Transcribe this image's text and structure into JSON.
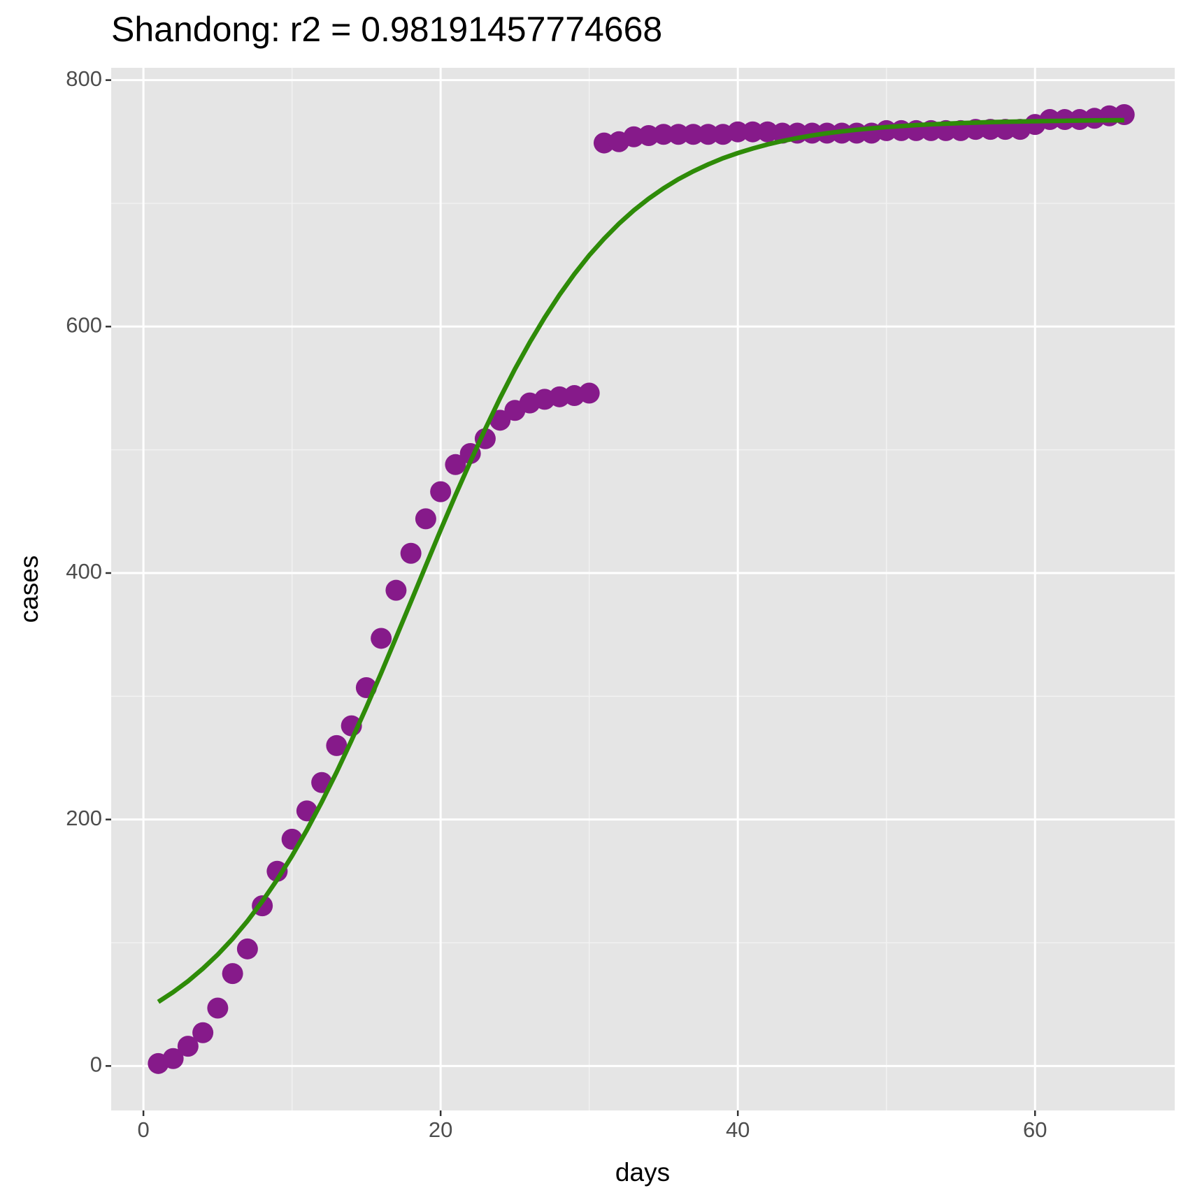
{
  "chart_data": {
    "type": "scatter",
    "title": "Shandong: r2 = 0.98191457774668",
    "x_label": "days",
    "y_label": "cases",
    "x": [
      1,
      2,
      3,
      4,
      5,
      6,
      7,
      8,
      9,
      10,
      11,
      12,
      13,
      14,
      15,
      16,
      17,
      18,
      19,
      20,
      21,
      22,
      23,
      24,
      25,
      26,
      27,
      28,
      29,
      30,
      31,
      32,
      33,
      34,
      35,
      36,
      37,
      38,
      39,
      40,
      41,
      42,
      43,
      44,
      45,
      46,
      47,
      48,
      49,
      50,
      51,
      52,
      53,
      54,
      55,
      56,
      57,
      58,
      59,
      60,
      61,
      62,
      63,
      64,
      65,
      66
    ],
    "series": [
      {
        "style": "points",
        "color": "#861a8a",
        "values": [
          2,
          6,
          16,
          27,
          47,
          75,
          95,
          130,
          158,
          184,
          207,
          230,
          260,
          276,
          307,
          347,
          386,
          416,
          444,
          466,
          488,
          497,
          509,
          524,
          532,
          538,
          541,
          543,
          544,
          546,
          749,
          750,
          754,
          755,
          756,
          756,
          756,
          756,
          756,
          758,
          758,
          758,
          757,
          757,
          757,
          757,
          757,
          757,
          757,
          759,
          759,
          759,
          759,
          759,
          759,
          760,
          760,
          760,
          760,
          764,
          768,
          768,
          768,
          769,
          771,
          772
        ]
      },
      {
        "style": "line",
        "color": "#2e8b08",
        "values": [
          52.0,
          59.9,
          68.8,
          79.0,
          90.4,
          103.2,
          117.6,
          133.6,
          151.2,
          170.5,
          191.5,
          214.2,
          238.4,
          264.1,
          291.0,
          318.9,
          347.7,
          376.7,
          405.9,
          434.9,
          463.2,
          490.4,
          516.8,
          542.0,
          565.5,
          587.2,
          607.3,
          625.8,
          642.6,
          657.8,
          671.3,
          683.5,
          694.3,
          703.8,
          712.2,
          719.6,
          726.0,
          731.6,
          736.6,
          740.8,
          744.5,
          747.8,
          750.6,
          753.0,
          755.1,
          756.9,
          758.4,
          759.7,
          760.9,
          761.9,
          762.7,
          763.5,
          764.1,
          764.6,
          765.1,
          765.5,
          765.9,
          766.2,
          766.4,
          766.6,
          766.8,
          767.0,
          767.2,
          767.3,
          767.4,
          767.5
        ]
      }
    ],
    "xlim": [
      -2.17,
      69.4
    ],
    "ylim": [
      -36.1,
      810
    ],
    "xticks": [
      0,
      20,
      40,
      60
    ],
    "yticks": [
      0,
      200,
      400,
      600,
      800
    ],
    "xticks_minor": [
      10,
      30,
      50
    ],
    "yticks_minor": [
      100,
      300,
      500,
      700
    ],
    "grid": true
  }
}
